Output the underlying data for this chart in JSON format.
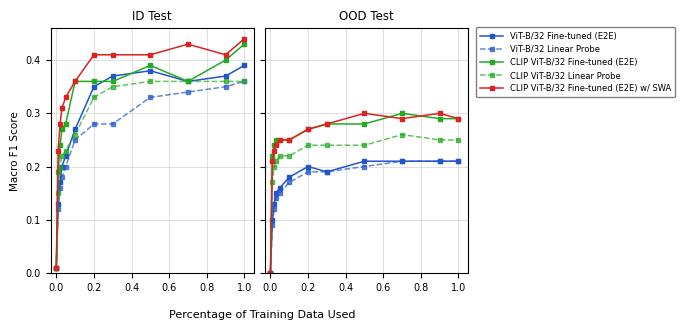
{
  "x": [
    0.0,
    0.01,
    0.02,
    0.03,
    0.05,
    0.1,
    0.2,
    0.3,
    0.5,
    0.7,
    0.9,
    1.0
  ],
  "id_vit_e2e": [
    0.01,
    0.13,
    0.17,
    0.2,
    0.22,
    0.27,
    0.35,
    0.37,
    0.38,
    0.36,
    0.37,
    0.39
  ],
  "id_vit_lp": [
    0.01,
    0.12,
    0.16,
    0.18,
    0.2,
    0.25,
    0.28,
    0.28,
    0.33,
    0.34,
    0.35,
    0.36
  ],
  "id_clip_e2e": [
    0.01,
    0.19,
    0.24,
    0.27,
    0.28,
    0.36,
    0.36,
    0.36,
    0.39,
    0.36,
    0.4,
    0.43
  ],
  "id_clip_lp": [
    0.01,
    0.15,
    0.2,
    0.22,
    0.23,
    0.26,
    0.33,
    0.35,
    0.36,
    0.36,
    0.36,
    0.36
  ],
  "id_clip_swa": [
    0.01,
    0.23,
    0.28,
    0.31,
    0.33,
    0.36,
    0.41,
    0.41,
    0.41,
    0.43,
    0.41,
    0.44
  ],
  "ood_vit_e2e": [
    0.0,
    0.1,
    0.13,
    0.15,
    0.16,
    0.18,
    0.2,
    0.19,
    0.21,
    0.21,
    0.21,
    0.21
  ],
  "ood_vit_lp": [
    0.0,
    0.09,
    0.12,
    0.14,
    0.15,
    0.17,
    0.19,
    0.19,
    0.2,
    0.21,
    0.21,
    0.21
  ],
  "ood_clip_e2e": [
    0.0,
    0.22,
    0.24,
    0.25,
    0.25,
    0.25,
    0.27,
    0.28,
    0.28,
    0.3,
    0.29,
    0.29
  ],
  "ood_clip_lp": [
    0.0,
    0.17,
    0.2,
    0.21,
    0.22,
    0.22,
    0.24,
    0.24,
    0.24,
    0.26,
    0.25,
    0.25
  ],
  "ood_clip_swa": [
    0.0,
    0.21,
    0.23,
    0.24,
    0.25,
    0.25,
    0.27,
    0.28,
    0.3,
    0.29,
    0.3,
    0.29
  ],
  "color_blue": "#2255cc",
  "color_green": "#22aa22",
  "color_red": "#dd2222",
  "legend_labels": [
    "ViT-B/32 Fine-tuned (E2E)",
    "ViT-B/32 Linear Probe",
    "CLIP ViT-B/32 Fine-tuned (E2E)",
    "CLIP ViT-B/32 Linear Probe",
    "CLIP ViT-B/32 Fine-tuned (E2E) w/ SWA"
  ],
  "id_title": "ID Test",
  "ood_title": "OOD Test",
  "xlabel": "Percentage of Training Data Used",
  "ylabel": "Macro F1 Score",
  "ylim": [
    0.0,
    0.46
  ],
  "yticks": [
    0.0,
    0.1,
    0.2,
    0.3,
    0.4
  ],
  "xticks": [
    0.0,
    0.2,
    0.4,
    0.6,
    0.8,
    1.0
  ]
}
